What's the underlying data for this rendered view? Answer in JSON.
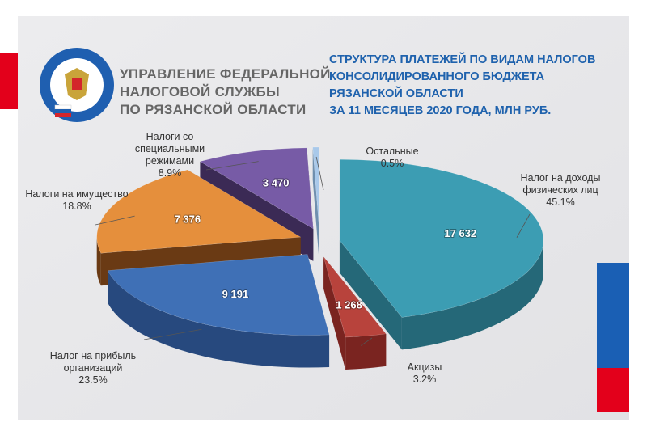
{
  "header": {
    "org_lines": [
      "УПРАВЛЕНИЕ ФЕДЕРАЛЬНОЙ",
      "НАЛОГОВОЙ СЛУЖБЫ",
      "ПО РЯЗАНСКОЙ ОБЛАСТИ"
    ]
  },
  "chart_data": {
    "type": "pie",
    "title_lines": [
      "СТРУКТУРА ПЛАТЕЖЕЙ ПО ВИДАМ НАЛОГОВ",
      "КОНСОЛИДИРОВАННОГО БЮДЖЕТА",
      "РЯЗАНСКОЙ ОБЛАСТИ",
      "ЗА 11 МЕСЯЦЕВ 2020 ГОДА, МЛН РУБ."
    ],
    "categories": [
      "Налог на доходы физических лиц",
      "Акцизы",
      "Налог на прибыль организаций",
      "Налоги на имущество",
      "Налоги со специальными режимами",
      "Остальные"
    ],
    "values": [
      17632,
      1268,
      9191,
      7376,
      3470,
      196
    ],
    "value_labels": [
      "17 632",
      "1 268",
      "9 191",
      "7 376",
      "3 470",
      null
    ],
    "percent_labels": [
      "45.1%",
      "3.2%",
      "23.5%",
      "18.8%",
      "8.9%",
      "0.5%"
    ],
    "colors": [
      "#3c9db3",
      "#b8433c",
      "#3f70b6",
      "#e58f3c",
      "#775ba6",
      "#a9c9ea"
    ],
    "side_colors": [
      "#256878",
      "#7a2420",
      "#27497e",
      "#6a3a14",
      "#3b2a55",
      "#6f8fae"
    ]
  }
}
